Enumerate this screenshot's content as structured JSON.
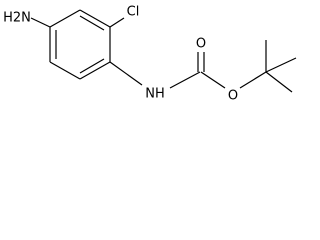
{
  "atoms": [
    {
      "label": "H2N"
    },
    {
      "label": "Cl"
    },
    {
      "label": "NH"
    },
    {
      "label": "O"
    },
    {
      "label": "O"
    }
  ]
}
